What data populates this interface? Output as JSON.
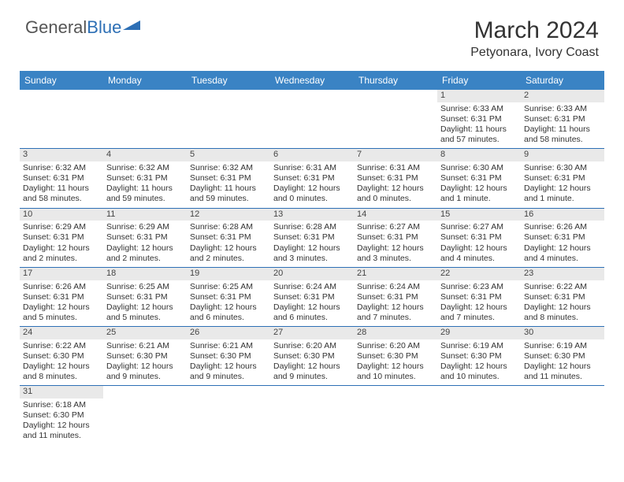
{
  "logo": {
    "text1": "General",
    "text2": "Blue"
  },
  "title": "March 2024",
  "location": "Petyonara, Ivory Coast",
  "colors": {
    "header_bg": "#3a83c4",
    "week_border": "#2d6fb5",
    "daynum_bg": "#e9e9e9",
    "text": "#333333"
  },
  "day_names": [
    "Sunday",
    "Monday",
    "Tuesday",
    "Wednesday",
    "Thursday",
    "Friday",
    "Saturday"
  ],
  "weeks": [
    [
      null,
      null,
      null,
      null,
      null,
      {
        "n": "1",
        "sr": "Sunrise: 6:33 AM",
        "ss": "Sunset: 6:31 PM",
        "dl": "Daylight: 11 hours and 57 minutes."
      },
      {
        "n": "2",
        "sr": "Sunrise: 6:33 AM",
        "ss": "Sunset: 6:31 PM",
        "dl": "Daylight: 11 hours and 58 minutes."
      }
    ],
    [
      {
        "n": "3",
        "sr": "Sunrise: 6:32 AM",
        "ss": "Sunset: 6:31 PM",
        "dl": "Daylight: 11 hours and 58 minutes."
      },
      {
        "n": "4",
        "sr": "Sunrise: 6:32 AM",
        "ss": "Sunset: 6:31 PM",
        "dl": "Daylight: 11 hours and 59 minutes."
      },
      {
        "n": "5",
        "sr": "Sunrise: 6:32 AM",
        "ss": "Sunset: 6:31 PM",
        "dl": "Daylight: 11 hours and 59 minutes."
      },
      {
        "n": "6",
        "sr": "Sunrise: 6:31 AM",
        "ss": "Sunset: 6:31 PM",
        "dl": "Daylight: 12 hours and 0 minutes."
      },
      {
        "n": "7",
        "sr": "Sunrise: 6:31 AM",
        "ss": "Sunset: 6:31 PM",
        "dl": "Daylight: 12 hours and 0 minutes."
      },
      {
        "n": "8",
        "sr": "Sunrise: 6:30 AM",
        "ss": "Sunset: 6:31 PM",
        "dl": "Daylight: 12 hours and 1 minute."
      },
      {
        "n": "9",
        "sr": "Sunrise: 6:30 AM",
        "ss": "Sunset: 6:31 PM",
        "dl": "Daylight: 12 hours and 1 minute."
      }
    ],
    [
      {
        "n": "10",
        "sr": "Sunrise: 6:29 AM",
        "ss": "Sunset: 6:31 PM",
        "dl": "Daylight: 12 hours and 2 minutes."
      },
      {
        "n": "11",
        "sr": "Sunrise: 6:29 AM",
        "ss": "Sunset: 6:31 PM",
        "dl": "Daylight: 12 hours and 2 minutes."
      },
      {
        "n": "12",
        "sr": "Sunrise: 6:28 AM",
        "ss": "Sunset: 6:31 PM",
        "dl": "Daylight: 12 hours and 2 minutes."
      },
      {
        "n": "13",
        "sr": "Sunrise: 6:28 AM",
        "ss": "Sunset: 6:31 PM",
        "dl": "Daylight: 12 hours and 3 minutes."
      },
      {
        "n": "14",
        "sr": "Sunrise: 6:27 AM",
        "ss": "Sunset: 6:31 PM",
        "dl": "Daylight: 12 hours and 3 minutes."
      },
      {
        "n": "15",
        "sr": "Sunrise: 6:27 AM",
        "ss": "Sunset: 6:31 PM",
        "dl": "Daylight: 12 hours and 4 minutes."
      },
      {
        "n": "16",
        "sr": "Sunrise: 6:26 AM",
        "ss": "Sunset: 6:31 PM",
        "dl": "Daylight: 12 hours and 4 minutes."
      }
    ],
    [
      {
        "n": "17",
        "sr": "Sunrise: 6:26 AM",
        "ss": "Sunset: 6:31 PM",
        "dl": "Daylight: 12 hours and 5 minutes."
      },
      {
        "n": "18",
        "sr": "Sunrise: 6:25 AM",
        "ss": "Sunset: 6:31 PM",
        "dl": "Daylight: 12 hours and 5 minutes."
      },
      {
        "n": "19",
        "sr": "Sunrise: 6:25 AM",
        "ss": "Sunset: 6:31 PM",
        "dl": "Daylight: 12 hours and 6 minutes."
      },
      {
        "n": "20",
        "sr": "Sunrise: 6:24 AM",
        "ss": "Sunset: 6:31 PM",
        "dl": "Daylight: 12 hours and 6 minutes."
      },
      {
        "n": "21",
        "sr": "Sunrise: 6:24 AM",
        "ss": "Sunset: 6:31 PM",
        "dl": "Daylight: 12 hours and 7 minutes."
      },
      {
        "n": "22",
        "sr": "Sunrise: 6:23 AM",
        "ss": "Sunset: 6:31 PM",
        "dl": "Daylight: 12 hours and 7 minutes."
      },
      {
        "n": "23",
        "sr": "Sunrise: 6:22 AM",
        "ss": "Sunset: 6:31 PM",
        "dl": "Daylight: 12 hours and 8 minutes."
      }
    ],
    [
      {
        "n": "24",
        "sr": "Sunrise: 6:22 AM",
        "ss": "Sunset: 6:30 PM",
        "dl": "Daylight: 12 hours and 8 minutes."
      },
      {
        "n": "25",
        "sr": "Sunrise: 6:21 AM",
        "ss": "Sunset: 6:30 PM",
        "dl": "Daylight: 12 hours and 9 minutes."
      },
      {
        "n": "26",
        "sr": "Sunrise: 6:21 AM",
        "ss": "Sunset: 6:30 PM",
        "dl": "Daylight: 12 hours and 9 minutes."
      },
      {
        "n": "27",
        "sr": "Sunrise: 6:20 AM",
        "ss": "Sunset: 6:30 PM",
        "dl": "Daylight: 12 hours and 9 minutes."
      },
      {
        "n": "28",
        "sr": "Sunrise: 6:20 AM",
        "ss": "Sunset: 6:30 PM",
        "dl": "Daylight: 12 hours and 10 minutes."
      },
      {
        "n": "29",
        "sr": "Sunrise: 6:19 AM",
        "ss": "Sunset: 6:30 PM",
        "dl": "Daylight: 12 hours and 10 minutes."
      },
      {
        "n": "30",
        "sr": "Sunrise: 6:19 AM",
        "ss": "Sunset: 6:30 PM",
        "dl": "Daylight: 12 hours and 11 minutes."
      }
    ],
    [
      {
        "n": "31",
        "sr": "Sunrise: 6:18 AM",
        "ss": "Sunset: 6:30 PM",
        "dl": "Daylight: 12 hours and 11 minutes."
      },
      null,
      null,
      null,
      null,
      null,
      null
    ]
  ]
}
